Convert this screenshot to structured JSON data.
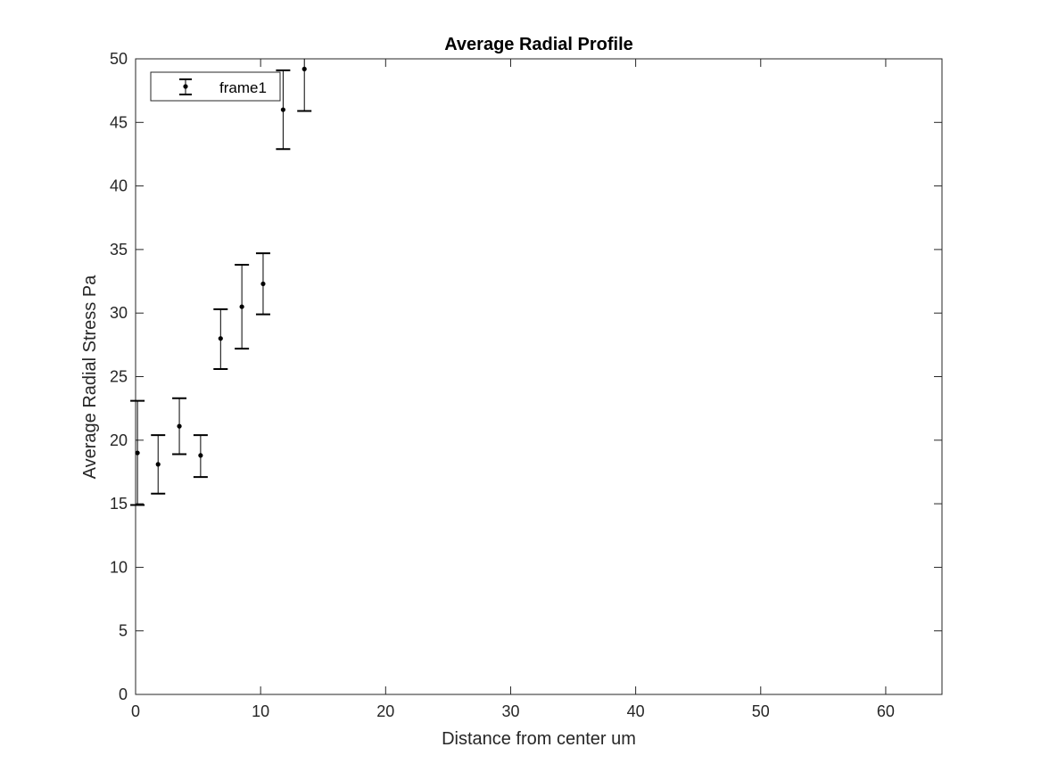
{
  "chart_data": {
    "type": "scatter",
    "title": "Average Radial Profile",
    "xlabel": "Distance from center um",
    "ylabel": "Average Radial Stress Pa",
    "xlim": [
      0,
      64.5
    ],
    "ylim": [
      0,
      50
    ],
    "xticks": [
      0,
      10,
      20,
      30,
      40,
      50,
      60
    ],
    "yticks": [
      0,
      5,
      10,
      15,
      20,
      25,
      30,
      35,
      40,
      45,
      50
    ],
    "grid": false,
    "legend_location": "top-left",
    "series": [
      {
        "name": "frame1",
        "color": "#000000",
        "marker": "point",
        "errorbars": true,
        "points": [
          {
            "x": 0.15,
            "y": 19.0,
            "low": 14.9,
            "high": 23.1
          },
          {
            "x": 1.8,
            "y": 18.1,
            "low": 15.8,
            "high": 20.4
          },
          {
            "x": 3.5,
            "y": 21.1,
            "low": 18.9,
            "high": 23.3
          },
          {
            "x": 5.2,
            "y": 18.8,
            "low": 17.1,
            "high": 20.4
          },
          {
            "x": 6.8,
            "y": 28.0,
            "low": 25.6,
            "high": 30.3
          },
          {
            "x": 8.5,
            "y": 30.5,
            "low": 27.2,
            "high": 33.8
          },
          {
            "x": 10.2,
            "y": 32.3,
            "low": 29.9,
            "high": 34.7
          },
          {
            "x": 11.8,
            "y": 46.0,
            "low": 42.9,
            "high": 49.1
          },
          {
            "x": 13.5,
            "y": 49.2,
            "low": 45.9,
            "high": 52.5
          }
        ]
      }
    ]
  }
}
